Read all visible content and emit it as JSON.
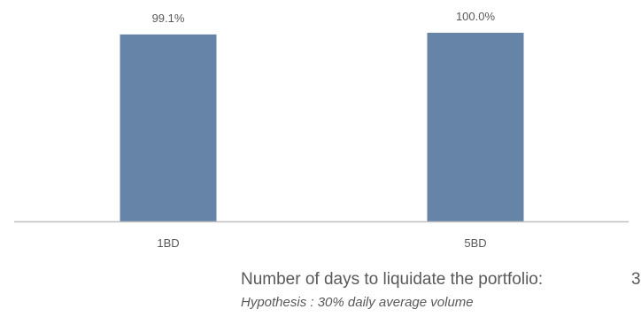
{
  "chart_data": {
    "type": "bar",
    "categories": [
      "1BD",
      "5BD"
    ],
    "values": [
      99.1,
      100.0
    ],
    "data_labels": [
      "99.1%",
      "100.0%"
    ],
    "ylim": [
      0,
      100
    ],
    "bar_color": "#6584a8",
    "axis_color": "#bfbfbf",
    "label_color": "#595959",
    "grid": false,
    "legend": "none"
  },
  "footnote": {
    "liquidation_label": "Number of days to liquidate the portfolio:",
    "liquidation_value": "3",
    "hypothesis": "Hypothesis : 30% daily average volume"
  }
}
